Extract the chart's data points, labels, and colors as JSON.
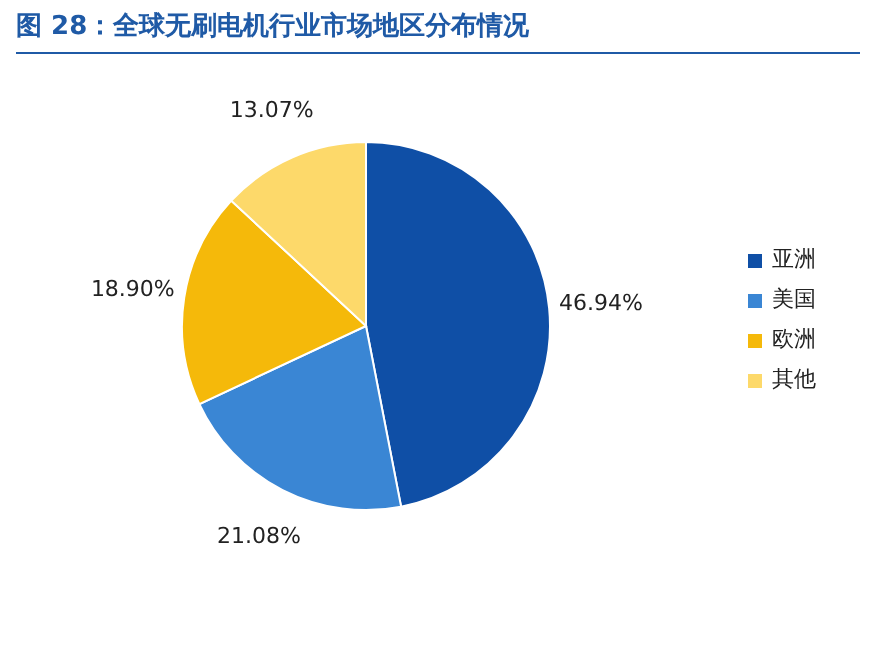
{
  "chart_data": {
    "type": "pie",
    "title": "图 28：全球无刷电机行业市场地区分布情况",
    "categories": [
      "亚洲",
      "美国",
      "欧洲",
      "其他"
    ],
    "values": [
      46.94,
      21.08,
      18.9,
      13.07
    ],
    "value_labels": [
      "46.94%",
      "21.08%",
      "18.90%",
      "13.07%"
    ],
    "colors": [
      "#0f4fa6",
      "#3a86d4",
      "#f5b90a",
      "#fdd96a"
    ],
    "legend": "right"
  }
}
